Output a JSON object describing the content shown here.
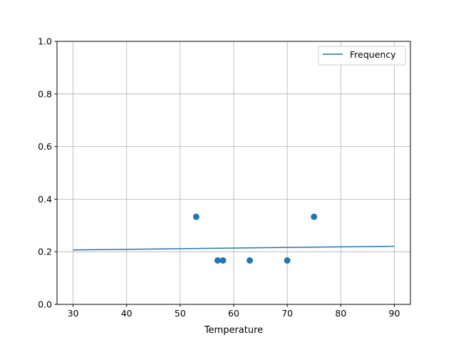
{
  "chart_data": {
    "type": "scatter",
    "title": "",
    "xlabel": "Temperature",
    "ylabel": "",
    "xlim": [
      27,
      93
    ],
    "ylim": [
      0,
      1.0
    ],
    "xticks": [
      30,
      40,
      50,
      60,
      70,
      80,
      90
    ],
    "yticks": [
      "0.0",
      "0.2",
      "0.4",
      "0.6",
      "0.8",
      "1.0"
    ],
    "grid": true,
    "legend": {
      "position": "top-right",
      "entries": [
        "Frequency"
      ]
    },
    "series": [
      {
        "name": "Frequency",
        "kind": "line",
        "color": "#1f77b4",
        "x": [
          30,
          90
        ],
        "y": [
          0.207,
          0.221
        ]
      },
      {
        "kind": "scatter",
        "color": "#1f77b4",
        "x": [
          53,
          57,
          58,
          63,
          70,
          75
        ],
        "y": [
          0.333,
          0.167,
          0.167,
          0.167,
          0.167,
          0.333
        ]
      }
    ]
  }
}
